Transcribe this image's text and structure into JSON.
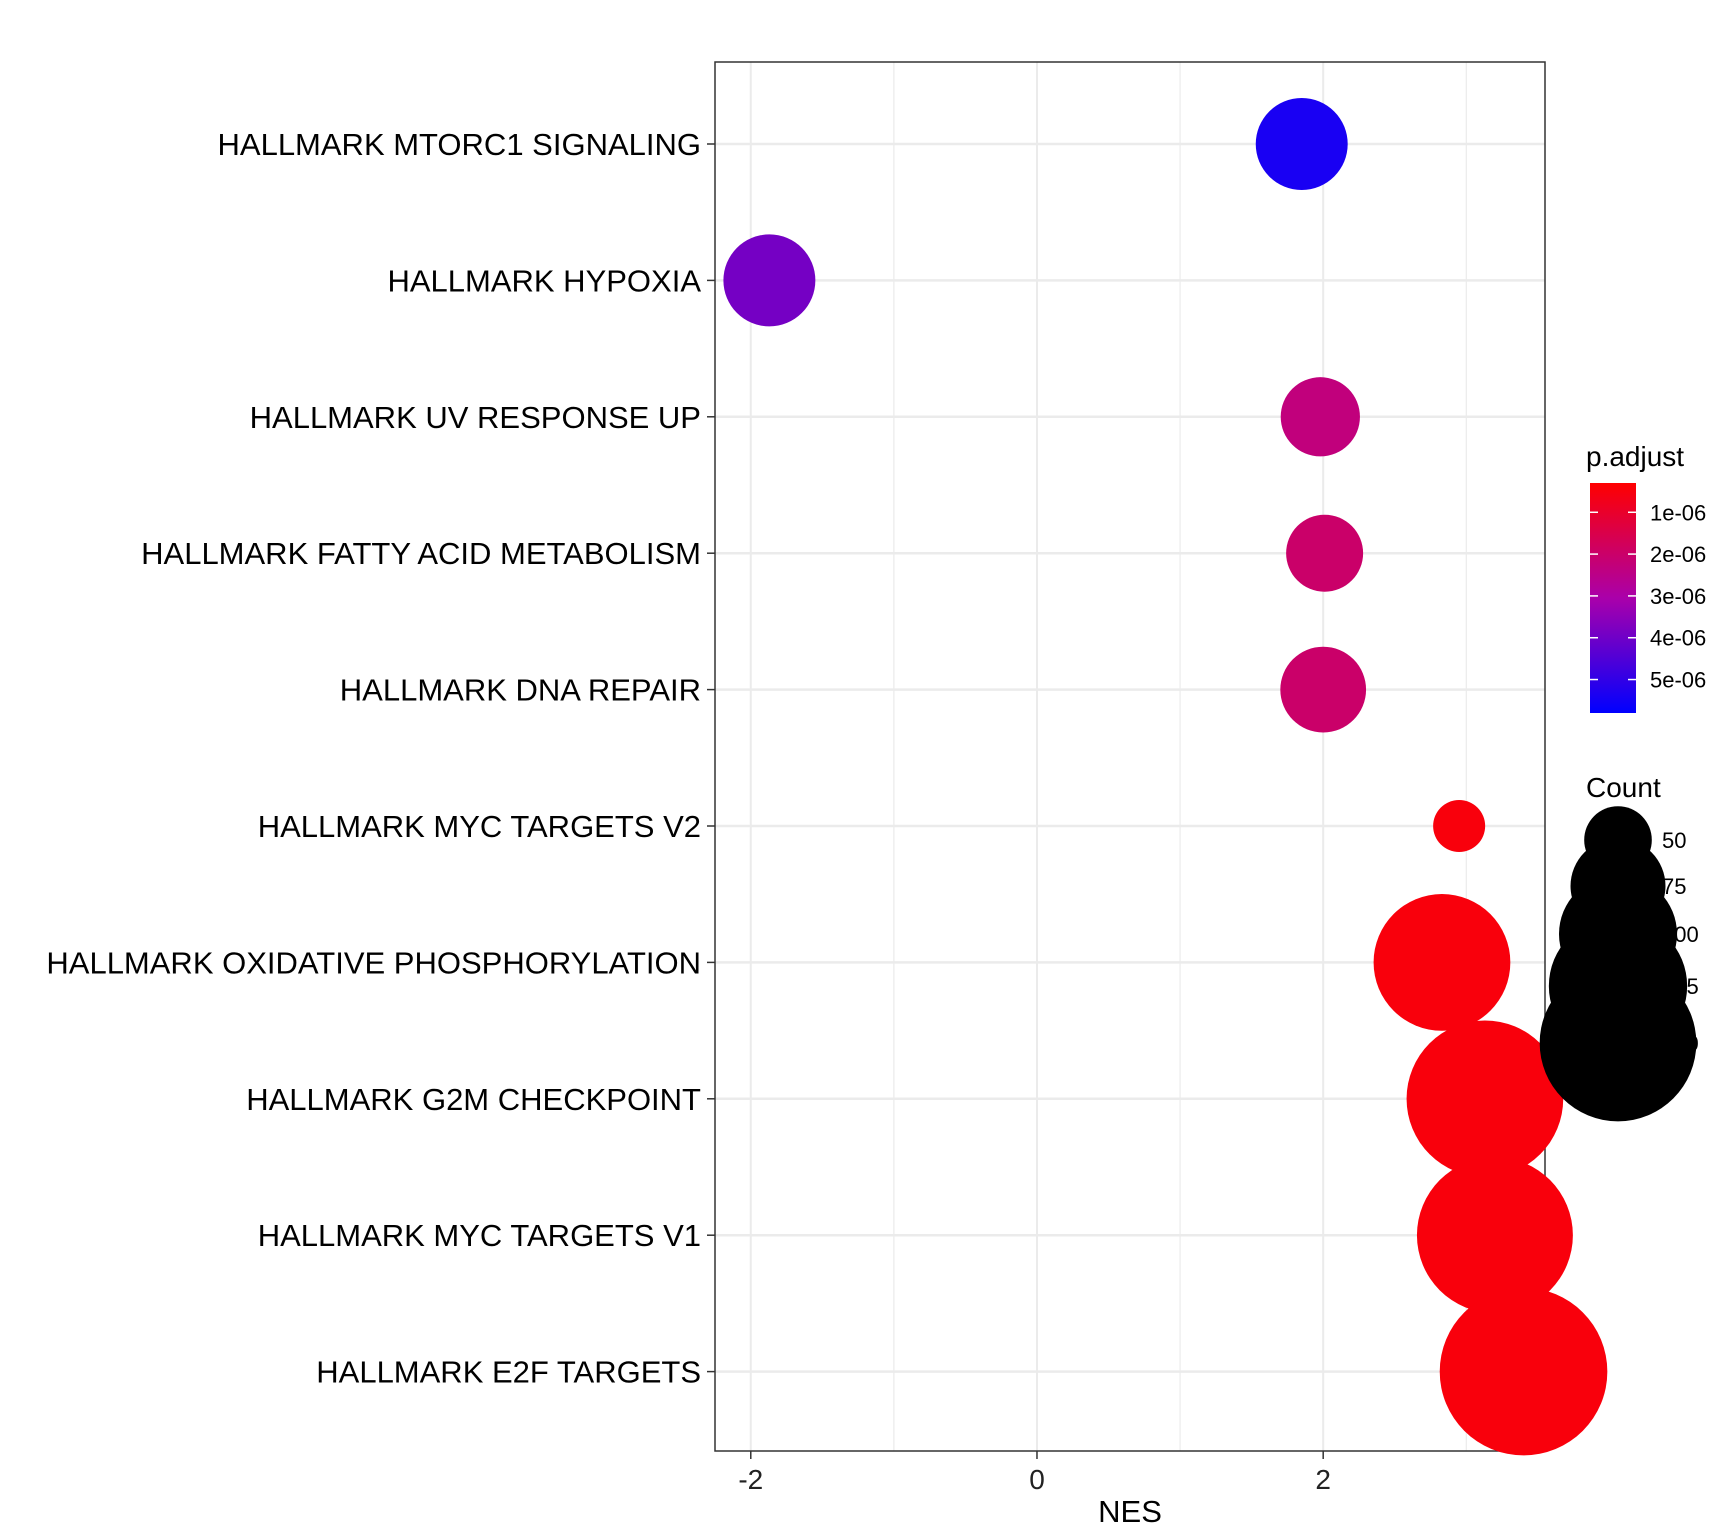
{
  "chart_data": {
    "type": "scatter",
    "title": "",
    "xlabel": "NES",
    "ylabel": "",
    "xlim": [
      -2.25,
      3.55
    ],
    "xticks": [
      -2,
      0,
      2
    ],
    "grid": true,
    "legend_position": "right",
    "categories": [
      "HALLMARK MTORC1 SIGNALING",
      "HALLMARK HYPOXIA",
      "HALLMARK UV RESPONSE UP",
      "HALLMARK FATTY ACID METABOLISM",
      "HALLMARK DNA REPAIR",
      "HALLMARK MYC TARGETS V2",
      "HALLMARK OXIDATIVE PHOSPHORYLATION",
      "HALLMARK G2M CHECKPOINT",
      "HALLMARK MYC TARGETS V1",
      "HALLMARK E2F TARGETS"
    ],
    "points": [
      {
        "category": "HALLMARK MTORC1 SIGNALING",
        "nes": 1.85,
        "count": 72,
        "p_adjust": 5.4e-06
      },
      {
        "category": "HALLMARK HYPOXIA",
        "nes": -1.87,
        "count": 72,
        "p_adjust": 3.9e-06
      },
      {
        "category": "HALLMARK UV RESPONSE UP",
        "nes": 1.98,
        "count": 60,
        "p_adjust": 2.3e-06
      },
      {
        "category": "HALLMARK FATTY ACID METABOLISM",
        "nes": 2.01,
        "count": 58,
        "p_adjust": 2e-06
      },
      {
        "category": "HALLMARK DNA REPAIR",
        "nes": 2.0,
        "count": 66,
        "p_adjust": 2e-06
      },
      {
        "category": "HALLMARK MYC TARGETS V2",
        "nes": 2.95,
        "count": 38,
        "p_adjust": 5e-07
      },
      {
        "category": "HALLMARK OXIDATIVE PHOSPHORYLATION",
        "nes": 2.83,
        "count": 123,
        "p_adjust": 5e-07
      },
      {
        "category": "HALLMARK G2M CHECKPOINT",
        "nes": 3.13,
        "count": 150,
        "p_adjust": 5e-07
      },
      {
        "category": "HALLMARK MYC TARGETS V1",
        "nes": 3.2,
        "count": 149,
        "p_adjust": 5e-07
      },
      {
        "category": "HALLMARK E2F TARGETS",
        "nes": 3.4,
        "count": 166,
        "p_adjust": 5e-07
      }
    ],
    "color_legend": {
      "title": "p.adjust",
      "range": [
        3e-07,
        5.8e-06
      ],
      "low_color": "#ff0000",
      "high_color": "#0000ff",
      "ticks": [
        {
          "value": 1e-06,
          "label": "1e-06"
        },
        {
          "value": 2e-06,
          "label": "2e-06"
        },
        {
          "value": 3e-06,
          "label": "3e-06"
        },
        {
          "value": 4e-06,
          "label": "4e-06"
        },
        {
          "value": 5e-06,
          "label": "5e-06"
        }
      ]
    },
    "size_legend": {
      "title": "Count",
      "items": [
        {
          "value": 50,
          "label": "50"
        },
        {
          "value": 75,
          "label": "75"
        },
        {
          "value": 100,
          "label": "100"
        },
        {
          "value": 125,
          "label": "125"
        },
        {
          "value": 150,
          "label": "150"
        }
      ]
    }
  }
}
